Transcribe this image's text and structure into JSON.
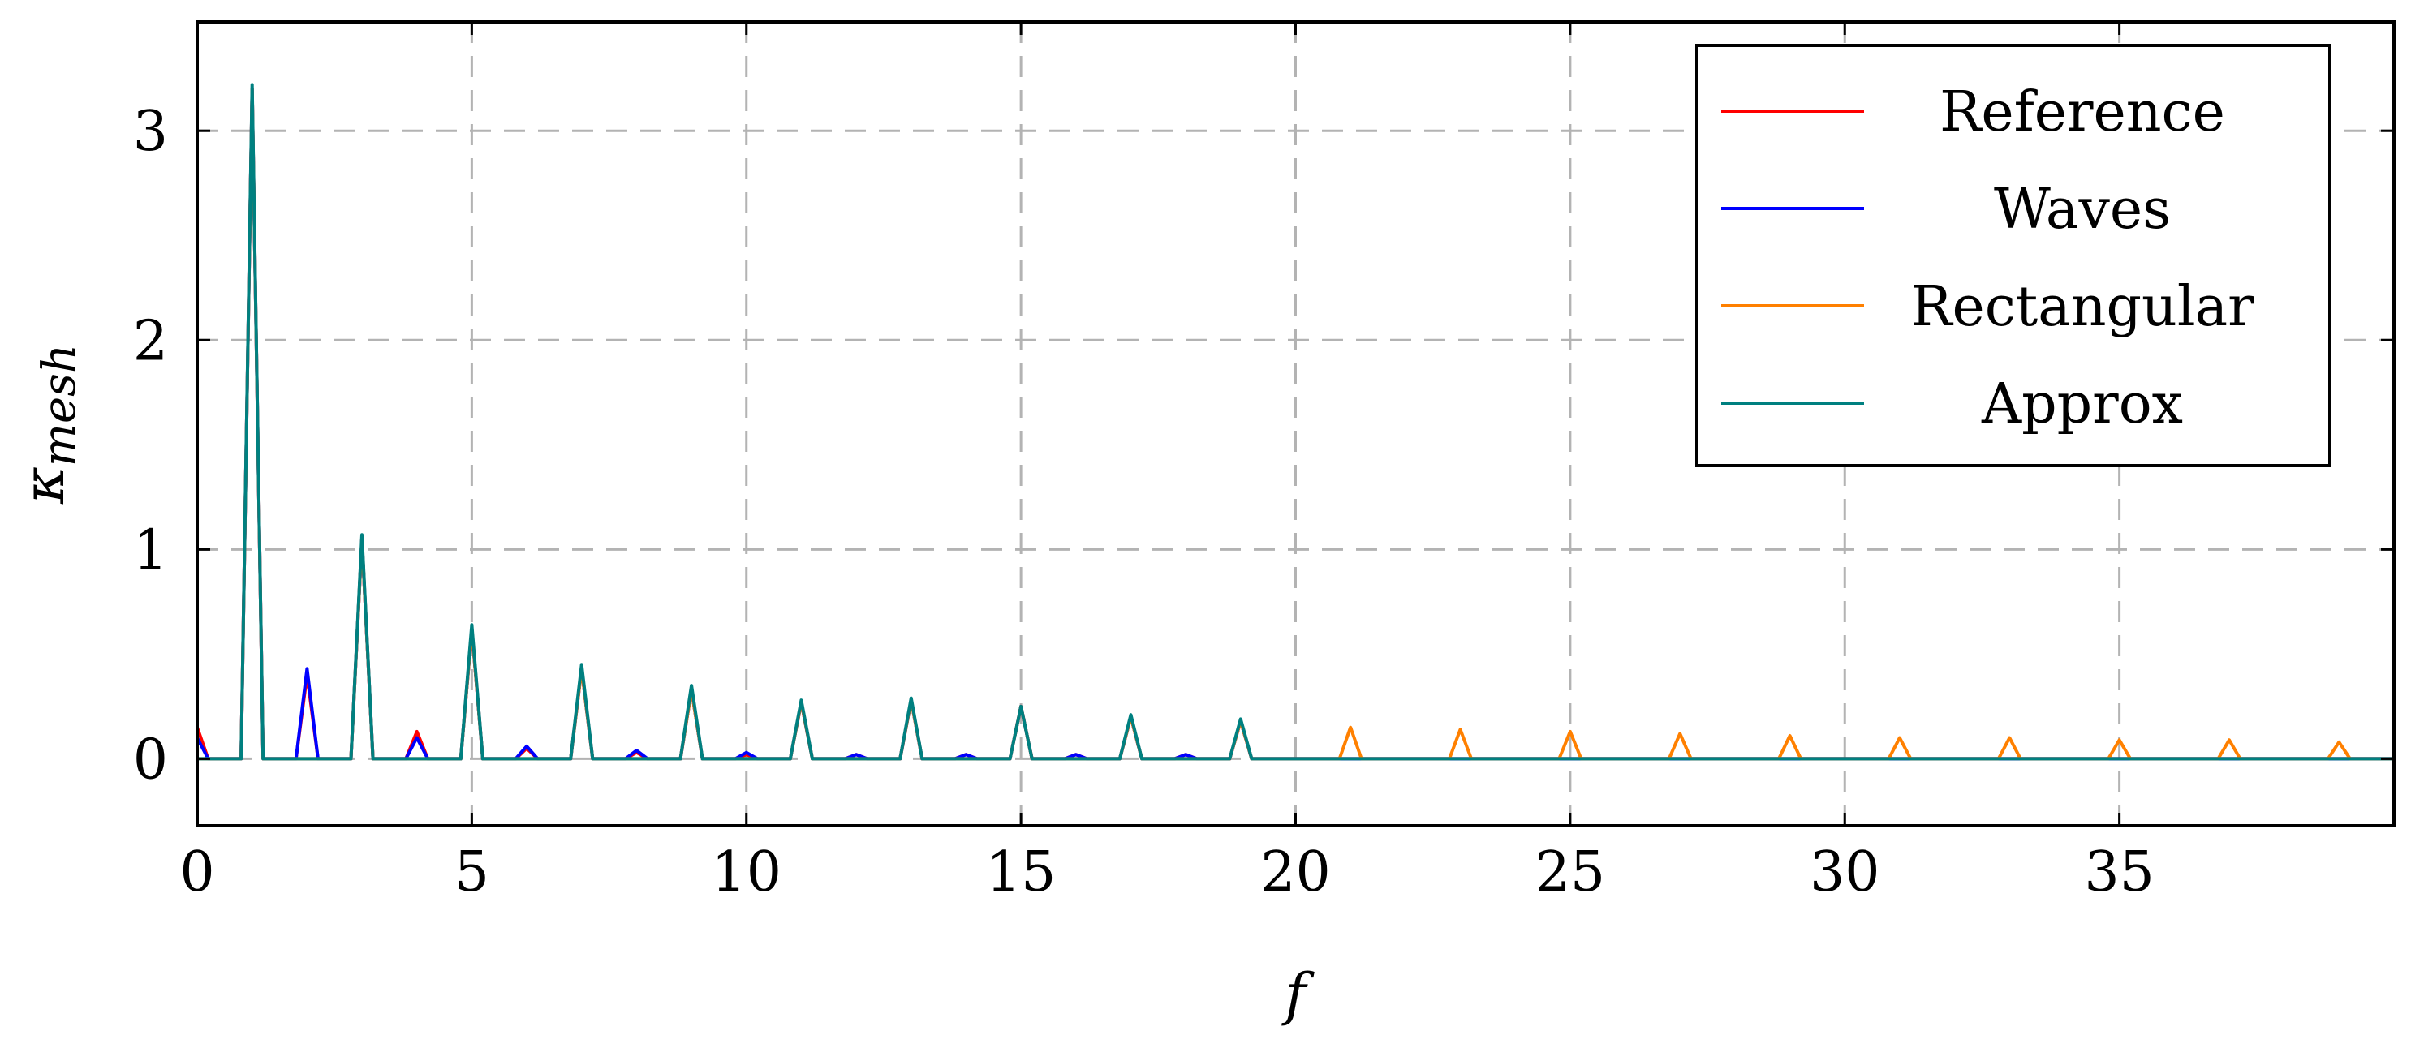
{
  "chart_data": {
    "type": "line",
    "title": "",
    "xlabel": "f",
    "ylabel": "κ",
    "ylabel_subscript": "mesh",
    "xlim": [
      0,
      40
    ],
    "ylim": [
      -0.32,
      3.52
    ],
    "xticks": [
      0,
      5,
      10,
      15,
      20,
      25,
      30,
      35
    ],
    "xtick_labels": [
      "0",
      "5",
      "10",
      "15",
      "20",
      "25",
      "30",
      "35"
    ],
    "yticks": [
      0,
      1,
      2,
      3
    ],
    "ytick_labels": [
      "0",
      "1",
      "2",
      "3"
    ],
    "grid": true,
    "legend_position": "top-right",
    "series": [
      {
        "name": "Reference",
        "color": "#ff0000",
        "points": [
          [
            0,
            0.15
          ],
          [
            0.2,
            0
          ],
          [
            0.8,
            0
          ],
          [
            1,
            3.2
          ],
          [
            1.2,
            0
          ],
          [
            1.8,
            0
          ],
          [
            2,
            0.4
          ],
          [
            2.2,
            0
          ],
          [
            2.8,
            0
          ],
          [
            3,
            1.05
          ],
          [
            3.2,
            0
          ],
          [
            3.8,
            0
          ],
          [
            4,
            0.13
          ],
          [
            4.2,
            0
          ],
          [
            4.8,
            0
          ],
          [
            5,
            0.62
          ],
          [
            5.2,
            0
          ],
          [
            5.8,
            0
          ],
          [
            6,
            0.05
          ],
          [
            6.2,
            0
          ],
          [
            6.8,
            0
          ],
          [
            7,
            0.43
          ],
          [
            7.2,
            0
          ],
          [
            7.8,
            0
          ],
          [
            8,
            0.03
          ],
          [
            8.2,
            0
          ],
          [
            8.8,
            0
          ],
          [
            9,
            0.33
          ],
          [
            9.2,
            0
          ],
          [
            9.8,
            0
          ],
          [
            10,
            0.02
          ],
          [
            10.2,
            0
          ],
          [
            10.8,
            0
          ],
          [
            11,
            0.27
          ],
          [
            11.2,
            0
          ],
          [
            11.8,
            0
          ],
          [
            12,
            0.02
          ],
          [
            12.2,
            0
          ],
          [
            12.8,
            0
          ],
          [
            13,
            0.28
          ],
          [
            13.2,
            0
          ],
          [
            13.8,
            0
          ],
          [
            14,
            0.02
          ],
          [
            14.2,
            0
          ],
          [
            14.8,
            0
          ],
          [
            15,
            0.25
          ],
          [
            15.2,
            0
          ],
          [
            15.8,
            0
          ],
          [
            16,
            0.02
          ],
          [
            16.2,
            0
          ],
          [
            16.8,
            0
          ],
          [
            17,
            0.2
          ],
          [
            17.2,
            0
          ],
          [
            17.8,
            0
          ],
          [
            18,
            0.02
          ],
          [
            18.2,
            0
          ],
          [
            18.8,
            0
          ],
          [
            19,
            0.18
          ],
          [
            19.2,
            0
          ],
          [
            40,
            0
          ]
        ]
      },
      {
        "name": "Waves",
        "color": "#0000ff",
        "points": [
          [
            0,
            0.1
          ],
          [
            0.2,
            0
          ],
          [
            0.8,
            0
          ],
          [
            1,
            3.2
          ],
          [
            1.2,
            0
          ],
          [
            1.8,
            0
          ],
          [
            2,
            0.43
          ],
          [
            2.2,
            0
          ],
          [
            2.8,
            0
          ],
          [
            3,
            1.05
          ],
          [
            3.2,
            0
          ],
          [
            3.8,
            0
          ],
          [
            4,
            0.1
          ],
          [
            4.2,
            0
          ],
          [
            4.8,
            0
          ],
          [
            5,
            0.62
          ],
          [
            5.2,
            0
          ],
          [
            5.8,
            0
          ],
          [
            6,
            0.06
          ],
          [
            6.2,
            0
          ],
          [
            6.8,
            0
          ],
          [
            7,
            0.43
          ],
          [
            7.2,
            0
          ],
          [
            7.8,
            0
          ],
          [
            8,
            0.04
          ],
          [
            8.2,
            0
          ],
          [
            8.8,
            0
          ],
          [
            9,
            0.33
          ],
          [
            9.2,
            0
          ],
          [
            9.8,
            0
          ],
          [
            10,
            0.03
          ],
          [
            10.2,
            0
          ],
          [
            10.8,
            0
          ],
          [
            11,
            0.27
          ],
          [
            11.2,
            0
          ],
          [
            11.8,
            0
          ],
          [
            12,
            0.02
          ],
          [
            12.2,
            0
          ],
          [
            12.8,
            0
          ],
          [
            13,
            0.28
          ],
          [
            13.2,
            0
          ],
          [
            13.8,
            0
          ],
          [
            14,
            0.02
          ],
          [
            14.2,
            0
          ],
          [
            14.8,
            0
          ],
          [
            15,
            0.25
          ],
          [
            15.2,
            0
          ],
          [
            15.8,
            0
          ],
          [
            16,
            0.02
          ],
          [
            16.2,
            0
          ],
          [
            16.8,
            0
          ],
          [
            17,
            0.2
          ],
          [
            17.2,
            0
          ],
          [
            17.8,
            0
          ],
          [
            18,
            0.02
          ],
          [
            18.2,
            0
          ],
          [
            18.8,
            0
          ],
          [
            19,
            0.18
          ],
          [
            19.2,
            0
          ],
          [
            40,
            0
          ]
        ]
      },
      {
        "name": "Rectangular",
        "color": "#ff8000",
        "points": [
          [
            0,
            0
          ],
          [
            0.8,
            0
          ],
          [
            1,
            3.2
          ],
          [
            1.2,
            0
          ],
          [
            2.8,
            0
          ],
          [
            3,
            1.05
          ],
          [
            3.2,
            0
          ],
          [
            4.8,
            0
          ],
          [
            5,
            0.62
          ],
          [
            5.2,
            0
          ],
          [
            6.8,
            0
          ],
          [
            7,
            0.43
          ],
          [
            7.2,
            0
          ],
          [
            8.8,
            0
          ],
          [
            9,
            0.33
          ],
          [
            9.2,
            0
          ],
          [
            10.8,
            0
          ],
          [
            11,
            0.27
          ],
          [
            11.2,
            0
          ],
          [
            12.8,
            0
          ],
          [
            13,
            0.28
          ],
          [
            13.2,
            0
          ],
          [
            14.8,
            0
          ],
          [
            15,
            0.25
          ],
          [
            15.2,
            0
          ],
          [
            16.8,
            0
          ],
          [
            17,
            0.2
          ],
          [
            17.2,
            0
          ],
          [
            18.8,
            0
          ],
          [
            19,
            0.18
          ],
          [
            19.2,
            0
          ],
          [
            20.8,
            0
          ],
          [
            21,
            0.15
          ],
          [
            21.2,
            0
          ],
          [
            22.8,
            0
          ],
          [
            23,
            0.14
          ],
          [
            23.2,
            0
          ],
          [
            24.8,
            0
          ],
          [
            25,
            0.13
          ],
          [
            25.2,
            0
          ],
          [
            26.8,
            0
          ],
          [
            27,
            0.12
          ],
          [
            27.2,
            0
          ],
          [
            28.8,
            0
          ],
          [
            29,
            0.11
          ],
          [
            29.2,
            0
          ],
          [
            30.8,
            0
          ],
          [
            31,
            0.1
          ],
          [
            31.2,
            0
          ],
          [
            32.8,
            0
          ],
          [
            33,
            0.1
          ],
          [
            33.2,
            0
          ],
          [
            34.8,
            0
          ],
          [
            35,
            0.09
          ],
          [
            35.2,
            0
          ],
          [
            36.8,
            0
          ],
          [
            37,
            0.09
          ],
          [
            37.2,
            0
          ],
          [
            38.8,
            0
          ],
          [
            39,
            0.08
          ],
          [
            39.2,
            0
          ],
          [
            40,
            0
          ]
        ]
      },
      {
        "name": "Approx",
        "color": "#008080",
        "points": [
          [
            0,
            0
          ],
          [
            0.8,
            0
          ],
          [
            1,
            3.22
          ],
          [
            1.2,
            0
          ],
          [
            2.8,
            0
          ],
          [
            3,
            1.07
          ],
          [
            3.2,
            0
          ],
          [
            4.8,
            0
          ],
          [
            5,
            0.64
          ],
          [
            5.2,
            0
          ],
          [
            6.8,
            0
          ],
          [
            7,
            0.45
          ],
          [
            7.2,
            0
          ],
          [
            8.8,
            0
          ],
          [
            9,
            0.35
          ],
          [
            9.2,
            0
          ],
          [
            10.8,
            0
          ],
          [
            11,
            0.28
          ],
          [
            11.2,
            0
          ],
          [
            12.8,
            0
          ],
          [
            13,
            0.29
          ],
          [
            13.2,
            0
          ],
          [
            14.8,
            0
          ],
          [
            15,
            0.25
          ],
          [
            15.2,
            0
          ],
          [
            16.8,
            0
          ],
          [
            17,
            0.21
          ],
          [
            17.2,
            0
          ],
          [
            18.8,
            0
          ],
          [
            19,
            0.19
          ],
          [
            19.2,
            0
          ],
          [
            40,
            0
          ]
        ]
      }
    ]
  }
}
